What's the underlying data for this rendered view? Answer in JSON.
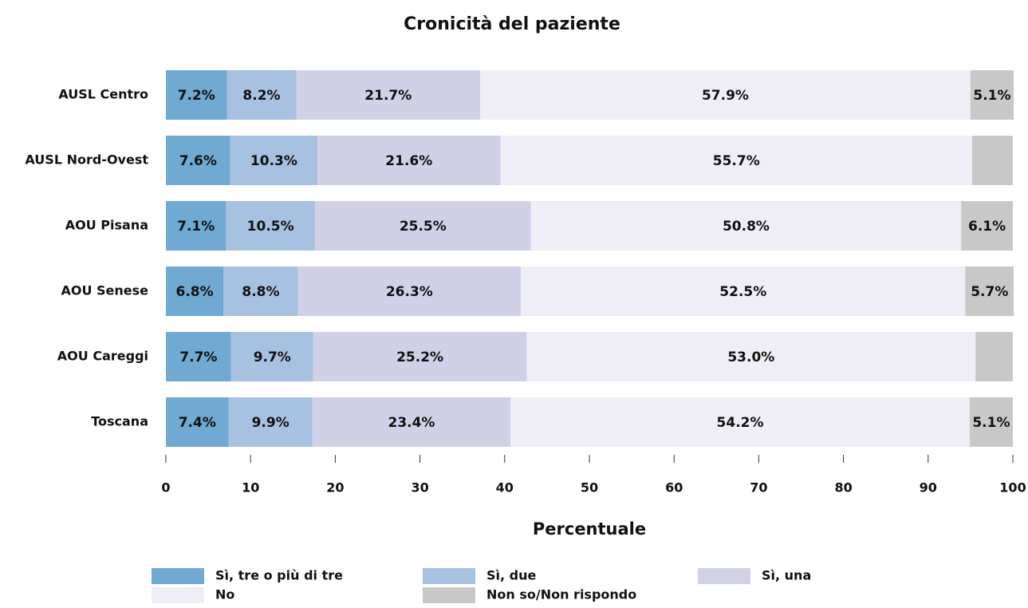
{
  "chart_data": {
    "type": "stacked-barh",
    "title": "Cronicità del paziente",
    "x_label": "Percentuale",
    "categories": [
      "AUSL Centro",
      "AUSL Nord-Ovest",
      "AOU Pisana",
      "AOU Senese",
      "AOU Careggi",
      "Toscana"
    ],
    "series": [
      {
        "name": "Sì, tre o più di tre",
        "color": "#70a9d1",
        "values": [
          7.2,
          7.6,
          7.1,
          6.8,
          7.7,
          7.4
        ],
        "value_labels": [
          "7.2%",
          "7.6%",
          "7.1%",
          "6.8%",
          "7.7%",
          "7.4%"
        ]
      },
      {
        "name": "Sì, due",
        "color": "#a7c1e0",
        "values": [
          8.2,
          10.3,
          10.5,
          8.8,
          9.7,
          9.9
        ],
        "value_labels": [
          "8.2%",
          "10.3%",
          "10.5%",
          "8.8%",
          "9.7%",
          "9.9%"
        ]
      },
      {
        "name": "Sì, una",
        "color": "#d0d0e7",
        "values": [
          21.7,
          21.6,
          25.5,
          26.3,
          25.2,
          23.4
        ],
        "value_labels": [
          "21.7%",
          "21.6%",
          "25.5%",
          "26.3%",
          "25.2%",
          "23.4%"
        ]
      },
      {
        "name": "No",
        "color": "#efedf5",
        "values": [
          57.9,
          55.7,
          50.8,
          52.5,
          53.0,
          54.2
        ],
        "value_labels": [
          "57.9%",
          "55.7%",
          "50.8%",
          "52.5%",
          "53.0%",
          "54.2%"
        ]
      },
      {
        "name": "Non so/Non rispondo",
        "color": "#c8c8c8",
        "values": [
          5.1,
          4.8,
          6.1,
          5.7,
          4.4,
          5.1
        ],
        "value_labels": [
          "5.1%",
          null,
          "6.1%",
          "5.7%",
          null,
          "5.1%"
        ]
      }
    ],
    "xlim": [
      0,
      100
    ],
    "xticks": [
      0,
      10,
      20,
      30,
      40,
      50,
      60,
      70,
      80,
      90,
      100
    ],
    "legend": "bottom"
  }
}
